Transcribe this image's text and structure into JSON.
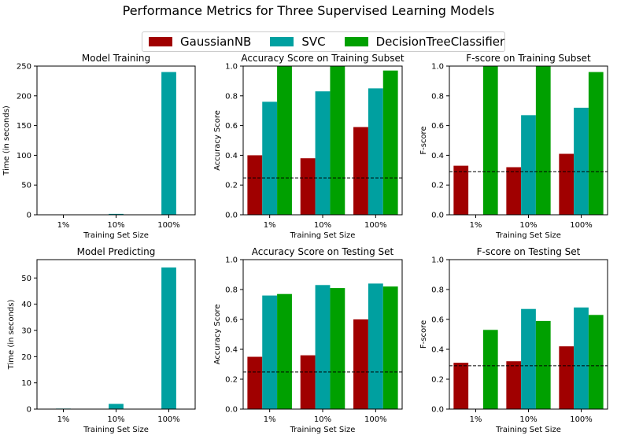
{
  "figure": {
    "title": "Performance Metrics for Three Supervised Learning Models",
    "legend": [
      {
        "name": "GaussianNB",
        "color": "#a00000"
      },
      {
        "name": "SVC",
        "color": "#00a0a0"
      },
      {
        "name": "DecisionTreeClassifier",
        "color": "#00a000"
      }
    ],
    "legend_placement": "top-center"
  },
  "chart_data": [
    {
      "type": "bar",
      "title": "Model Training",
      "xlabel": "Training Set Size",
      "ylabel": "Time (in seconds)",
      "categories": [
        "1%",
        "10%",
        "100%"
      ],
      "ylim": [
        0,
        250
      ],
      "yticks": [
        0,
        50,
        100,
        150,
        200,
        250
      ],
      "series": [
        {
          "name": "GaussianNB",
          "values": [
            0.0,
            0.0,
            0.1
          ]
        },
        {
          "name": "SVC",
          "values": [
            0.0,
            1.5,
            240
          ]
        },
        {
          "name": "DecisionTreeClassifier",
          "values": [
            0.0,
            0.0,
            0.1
          ]
        }
      ]
    },
    {
      "type": "bar",
      "title": "Accuracy Score on Training Subset",
      "xlabel": "Training Set Size",
      "ylabel": "Accuracy Score",
      "categories": [
        "1%",
        "10%",
        "100%"
      ],
      "ylim": [
        0,
        1
      ],
      "yticks": [
        0.0,
        0.2,
        0.4,
        0.6,
        0.8,
        1.0
      ],
      "baseline": 0.248,
      "series": [
        {
          "name": "GaussianNB",
          "values": [
            0.4,
            0.38,
            0.59
          ]
        },
        {
          "name": "SVC",
          "values": [
            0.76,
            0.83,
            0.85
          ]
        },
        {
          "name": "DecisionTreeClassifier",
          "values": [
            1.0,
            1.0,
            0.97
          ]
        }
      ]
    },
    {
      "type": "bar",
      "title": "F-score on Training Subset",
      "xlabel": "Training Set Size",
      "ylabel": "F-score",
      "categories": [
        "1%",
        "10%",
        "100%"
      ],
      "ylim": [
        0,
        1
      ],
      "yticks": [
        0.0,
        0.2,
        0.4,
        0.6,
        0.8,
        1.0
      ],
      "baseline": 0.29,
      "series": [
        {
          "name": "GaussianNB",
          "values": [
            0.33,
            0.32,
            0.41
          ]
        },
        {
          "name": "SVC",
          "values": [
            0.0,
            0.67,
            0.72
          ]
        },
        {
          "name": "DecisionTreeClassifier",
          "values": [
            1.0,
            1.0,
            0.96
          ]
        }
      ]
    },
    {
      "type": "bar",
      "title": "Model Predicting",
      "xlabel": "Training Set Size",
      "ylabel": "Time (in seconds)",
      "categories": [
        "1%",
        "10%",
        "100%"
      ],
      "ylim": [
        0,
        57
      ],
      "yticks": [
        0,
        10,
        20,
        30,
        40,
        50
      ],
      "series": [
        {
          "name": "GaussianNB",
          "values": [
            0.0,
            0.0,
            0.0
          ]
        },
        {
          "name": "SVC",
          "values": [
            0.2,
            2.0,
            54.0
          ]
        },
        {
          "name": "DecisionTreeClassifier",
          "values": [
            0.0,
            0.0,
            0.0
          ]
        }
      ]
    },
    {
      "type": "bar",
      "title": "Accuracy Score on Testing Set",
      "xlabel": "Training Set Size",
      "ylabel": "Accuracy Score",
      "categories": [
        "1%",
        "10%",
        "100%"
      ],
      "ylim": [
        0,
        1
      ],
      "yticks": [
        0.0,
        0.2,
        0.4,
        0.6,
        0.8,
        1.0
      ],
      "baseline": 0.248,
      "series": [
        {
          "name": "GaussianNB",
          "values": [
            0.35,
            0.36,
            0.6
          ]
        },
        {
          "name": "SVC",
          "values": [
            0.76,
            0.83,
            0.84
          ]
        },
        {
          "name": "DecisionTreeClassifier",
          "values": [
            0.77,
            0.81,
            0.82
          ]
        }
      ]
    },
    {
      "type": "bar",
      "title": "F-score on Testing Set",
      "xlabel": "Training Set Size",
      "ylabel": "F-score",
      "categories": [
        "1%",
        "10%",
        "100%"
      ],
      "ylim": [
        0,
        1
      ],
      "yticks": [
        0.0,
        0.2,
        0.4,
        0.6,
        0.8,
        1.0
      ],
      "baseline": 0.29,
      "series": [
        {
          "name": "GaussianNB",
          "values": [
            0.31,
            0.32,
            0.42
          ]
        },
        {
          "name": "SVC",
          "values": [
            0.0,
            0.67,
            0.68
          ]
        },
        {
          "name": "DecisionTreeClassifier",
          "values": [
            0.53,
            0.59,
            0.63
          ]
        }
      ]
    }
  ]
}
